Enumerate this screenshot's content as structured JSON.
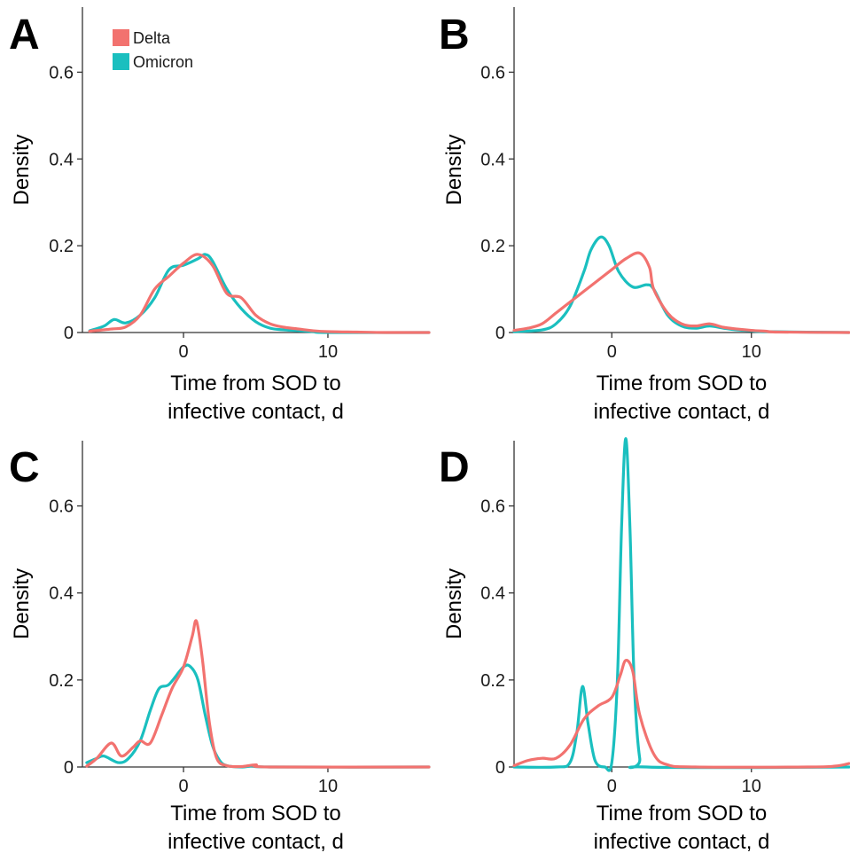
{
  "legend": {
    "entries": [
      {
        "label": "Delta",
        "color": "#F2726F"
      },
      {
        "label": "Omicron",
        "color": "#1ABFBF"
      }
    ]
  },
  "chart_data": [
    {
      "panel": "A",
      "type": "line",
      "xlabel": [
        "Time from SOD to",
        "infective contact, d"
      ],
      "ylabel": "Density",
      "xlim": [
        -7,
        17
      ],
      "ylim": [
        0,
        0.75
      ],
      "xticks": [
        0,
        10
      ],
      "yticks": [
        0,
        0.2,
        0.4,
        0.6
      ],
      "series": [
        {
          "name": "Delta",
          "color": "#F2726F",
          "points": [
            [
              -6.5,
              0.003
            ],
            [
              -5,
              0.008
            ],
            [
              -4,
              0.013
            ],
            [
              -3,
              0.04
            ],
            [
              -2,
              0.1
            ],
            [
              -1,
              0.13
            ],
            [
              0,
              0.16
            ],
            [
              1,
              0.18
            ],
            [
              2,
              0.155
            ],
            [
              3,
              0.09
            ],
            [
              4,
              0.08
            ],
            [
              5,
              0.04
            ],
            [
              6,
              0.02
            ],
            [
              7,
              0.012
            ],
            [
              8,
              0.008
            ],
            [
              9,
              0.004
            ],
            [
              10,
              0.002
            ],
            [
              12,
              0.001
            ],
            [
              14,
              0.0
            ],
            [
              17,
              0.0
            ]
          ]
        },
        {
          "name": "Omicron",
          "color": "#1ABFBF",
          "points": [
            [
              -6.5,
              0.004
            ],
            [
              -5.5,
              0.015
            ],
            [
              -4.8,
              0.03
            ],
            [
              -4,
              0.022
            ],
            [
              -3,
              0.04
            ],
            [
              -2,
              0.08
            ],
            [
              -1,
              0.145
            ],
            [
              0,
              0.155
            ],
            [
              1,
              0.17
            ],
            [
              1.5,
              0.18
            ],
            [
              2,
              0.165
            ],
            [
              3,
              0.1
            ],
            [
              4,
              0.055
            ],
            [
              5,
              0.025
            ],
            [
              6,
              0.01
            ],
            [
              7,
              0.006
            ],
            [
              8,
              0.004
            ],
            [
              9,
              0.002
            ],
            [
              10,
              0.0
            ],
            [
              17,
              0.0
            ]
          ]
        }
      ]
    },
    {
      "panel": "B",
      "type": "line",
      "xlabel": [
        "Time from SOD to",
        "infective contact, d"
      ],
      "ylabel": "Density",
      "xlim": [
        -7,
        17
      ],
      "ylim": [
        0,
        0.75
      ],
      "xticks": [
        0,
        10
      ],
      "yticks": [
        0,
        0.2,
        0.4,
        0.6
      ],
      "series": [
        {
          "name": "Delta",
          "color": "#F2726F",
          "points": [
            [
              -7,
              0.005
            ],
            [
              -6,
              0.01
            ],
            [
              -5,
              0.02
            ],
            [
              -4,
              0.045
            ],
            [
              -3,
              0.07
            ],
            [
              -2,
              0.095
            ],
            [
              -1,
              0.12
            ],
            [
              0,
              0.145
            ],
            [
              1,
              0.17
            ],
            [
              2,
              0.183
            ],
            [
              2.7,
              0.15
            ],
            [
              3,
              0.1
            ],
            [
              4,
              0.045
            ],
            [
              5,
              0.02
            ],
            [
              6,
              0.015
            ],
            [
              7,
              0.02
            ],
            [
              8,
              0.012
            ],
            [
              9,
              0.008
            ],
            [
              10,
              0.005
            ],
            [
              11,
              0.003
            ],
            [
              12,
              0.001
            ],
            [
              17,
              0.0
            ]
          ]
        },
        {
          "name": "Omicron",
          "color": "#1ABFBF",
          "points": [
            [
              -7,
              0.002
            ],
            [
              -5,
              0.006
            ],
            [
              -4,
              0.02
            ],
            [
              -3,
              0.06
            ],
            [
              -2,
              0.14
            ],
            [
              -1.5,
              0.19
            ],
            [
              -0.8,
              0.22
            ],
            [
              -0.2,
              0.2
            ],
            [
              0.5,
              0.14
            ],
            [
              1.5,
              0.105
            ],
            [
              2.5,
              0.11
            ],
            [
              3,
              0.1
            ],
            [
              4,
              0.04
            ],
            [
              5,
              0.015
            ],
            [
              6,
              0.01
            ],
            [
              7,
              0.015
            ],
            [
              8,
              0.01
            ],
            [
              9,
              0.006
            ],
            [
              10,
              0.004
            ],
            [
              11,
              0.002
            ],
            [
              17,
              0.0
            ]
          ]
        }
      ]
    },
    {
      "panel": "C",
      "type": "line",
      "xlabel": [
        "Time from SOD to",
        "infective contact, d"
      ],
      "ylabel": "Density",
      "xlim": [
        -7,
        17
      ],
      "ylim": [
        0,
        0.75
      ],
      "xticks": [
        0,
        10
      ],
      "yticks": [
        0,
        0.2,
        0.4,
        0.6
      ],
      "series": [
        {
          "name": "Delta",
          "color": "#F2726F",
          "points": [
            [
              -6.7,
              0.002
            ],
            [
              -6,
              0.02
            ],
            [
              -5,
              0.055
            ],
            [
              -4.3,
              0.025
            ],
            [
              -3.5,
              0.045
            ],
            [
              -3,
              0.06
            ],
            [
              -2.3,
              0.055
            ],
            [
              -1.5,
              0.12
            ],
            [
              -0.8,
              0.18
            ],
            [
              0,
              0.23
            ],
            [
              0.6,
              0.3
            ],
            [
              0.9,
              0.335
            ],
            [
              1.3,
              0.25
            ],
            [
              1.8,
              0.1
            ],
            [
              2.3,
              0.02
            ],
            [
              3,
              0.003
            ],
            [
              4,
              0.001
            ],
            [
              5,
              0.005
            ],
            [
              6,
              0.0
            ],
            [
              17,
              0.0
            ]
          ]
        },
        {
          "name": "Omicron",
          "color": "#1ABFBF",
          "points": [
            [
              -6.7,
              0.01
            ],
            [
              -6,
              0.02
            ],
            [
              -5.5,
              0.025
            ],
            [
              -4.5,
              0.01
            ],
            [
              -3.8,
              0.02
            ],
            [
              -3,
              0.06
            ],
            [
              -2.3,
              0.13
            ],
            [
              -1.7,
              0.18
            ],
            [
              -1,
              0.19
            ],
            [
              0,
              0.23
            ],
            [
              0.5,
              0.23
            ],
            [
              1,
              0.2
            ],
            [
              1.5,
              0.12
            ],
            [
              2,
              0.05
            ],
            [
              2.5,
              0.015
            ],
            [
              3,
              0.003
            ],
            [
              4,
              0.0
            ],
            [
              5,
              0.003
            ],
            [
              6,
              0.0
            ],
            [
              17,
              0.0
            ]
          ]
        }
      ]
    },
    {
      "panel": "D",
      "type": "line",
      "xlabel": [
        "Time from SOD to",
        "infective contact, d"
      ],
      "ylabel": "Density",
      "xlim": [
        -7,
        17
      ],
      "ylim": [
        0,
        0.75
      ],
      "xticks": [
        0,
        10
      ],
      "yticks": [
        0,
        0.2,
        0.4,
        0.6
      ],
      "series": [
        {
          "name": "Delta",
          "color": "#F2726F",
          "points": [
            [
              -7,
              0.003
            ],
            [
              -6,
              0.015
            ],
            [
              -5,
              0.02
            ],
            [
              -4,
              0.02
            ],
            [
              -3,
              0.05
            ],
            [
              -2,
              0.11
            ],
            [
              -1,
              0.14
            ],
            [
              0,
              0.16
            ],
            [
              0.6,
              0.21
            ],
            [
              1,
              0.245
            ],
            [
              1.5,
              0.22
            ],
            [
              2,
              0.12
            ],
            [
              3,
              0.03
            ],
            [
              4,
              0.005
            ],
            [
              6,
              0.0
            ],
            [
              14,
              0.0
            ],
            [
              16,
              0.002
            ],
            [
              17,
              0.008
            ]
          ]
        },
        {
          "name": "Omicron",
          "color": "#1ABFBF",
          "points": [
            [
              -7,
              0.0
            ],
            [
              -4,
              0.0
            ],
            [
              -3,
              0.01
            ],
            [
              -2.5,
              0.08
            ],
            [
              -2.1,
              0.185
            ],
            [
              -1.7,
              0.1
            ],
            [
              -1.2,
              0.015
            ],
            [
              -0.5,
              0.0
            ],
            [
              0,
              0.01
            ],
            [
              0.4,
              0.2
            ],
            [
              0.7,
              0.55
            ],
            [
              1,
              0.755
            ],
            [
              1.3,
              0.55
            ],
            [
              1.6,
              0.2
            ],
            [
              2,
              0.02
            ],
            [
              2.5,
              0.0
            ],
            [
              17,
              0.0
            ]
          ]
        }
      ]
    }
  ]
}
